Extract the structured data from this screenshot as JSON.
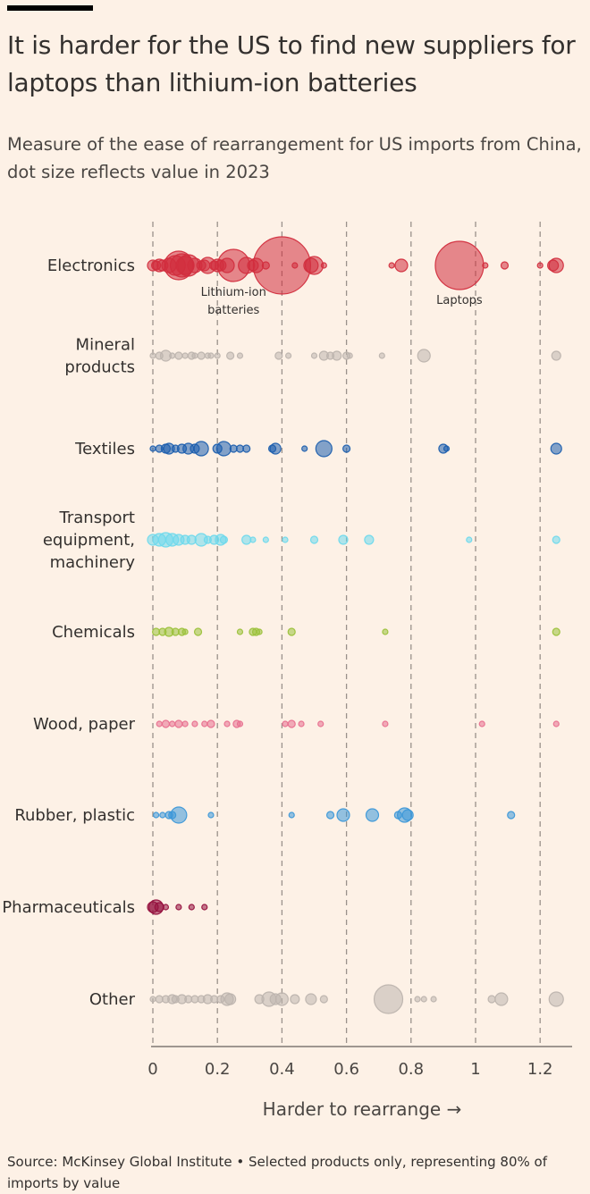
{
  "title": "It is harder for the US to find new suppliers for laptops than lithium-ion batteries",
  "subtitle": "Measure of the ease of rearrangement for US imports from China, dot size reflects value in 2023",
  "source": "Source: McKinsey Global Institute • Selected products only, representing 80% of imports by value",
  "chart_data": {
    "type": "scatter",
    "xlabel": "Harder to rearrange →",
    "xlim": [
      0,
      1.3
    ],
    "xticks": [
      0,
      0.2,
      0.4,
      0.6,
      0.8,
      1,
      1.2
    ],
    "xtick_labels": [
      "0",
      "0.2",
      "0.4",
      "0.6",
      "0.8",
      "1",
      "1.2"
    ],
    "grid": true,
    "series": [
      {
        "name": "Electronics",
        "color": "#d22e3e",
        "points": [
          {
            "x": 0.0,
            "s": 6
          },
          {
            "x": 0.01,
            "s": 5
          },
          {
            "x": 0.02,
            "s": 7
          },
          {
            "x": 0.03,
            "s": 6
          },
          {
            "x": 0.05,
            "s": 8
          },
          {
            "x": 0.07,
            "s": 11
          },
          {
            "x": 0.08,
            "s": 16
          },
          {
            "x": 0.09,
            "s": 13
          },
          {
            "x": 0.1,
            "s": 10
          },
          {
            "x": 0.11,
            "s": 12
          },
          {
            "x": 0.13,
            "s": 8
          },
          {
            "x": 0.15,
            "s": 5
          },
          {
            "x": 0.16,
            "s": 6
          },
          {
            "x": 0.17,
            "s": 9
          },
          {
            "x": 0.19,
            "s": 5
          },
          {
            "x": 0.2,
            "s": 7
          },
          {
            "x": 0.21,
            "s": 6
          },
          {
            "x": 0.23,
            "s": 8
          },
          {
            "x": 0.25,
            "s": 18,
            "label": "Lithium-ion batteries"
          },
          {
            "x": 0.29,
            "s": 9
          },
          {
            "x": 0.31,
            "s": 6
          },
          {
            "x": 0.32,
            "s": 8
          },
          {
            "x": 0.35,
            "s": 4
          },
          {
            "x": 0.4,
            "s": 32
          },
          {
            "x": 0.44,
            "s": 3
          },
          {
            "x": 0.49,
            "s": 8
          },
          {
            "x": 0.5,
            "s": 10
          },
          {
            "x": 0.53,
            "s": 3
          },
          {
            "x": 0.74,
            "s": 3
          },
          {
            "x": 0.77,
            "s": 7
          },
          {
            "x": 0.95,
            "s": 27,
            "label": "Laptops"
          },
          {
            "x": 1.03,
            "s": 3
          },
          {
            "x": 1.09,
            "s": 4
          },
          {
            "x": 1.2,
            "s": 3
          },
          {
            "x": 1.24,
            "s": 6
          },
          {
            "x": 1.25,
            "s": 8
          }
        ]
      },
      {
        "name": "Mineral products",
        "color": "#bdb4ae",
        "points": [
          {
            "x": 0.0,
            "s": 3
          },
          {
            "x": 0.02,
            "s": 4
          },
          {
            "x": 0.04,
            "s": 6
          },
          {
            "x": 0.06,
            "s": 3
          },
          {
            "x": 0.08,
            "s": 4
          },
          {
            "x": 0.1,
            "s": 3
          },
          {
            "x": 0.12,
            "s": 4
          },
          {
            "x": 0.13,
            "s": 3
          },
          {
            "x": 0.15,
            "s": 4
          },
          {
            "x": 0.17,
            "s": 3
          },
          {
            "x": 0.18,
            "s": 3
          },
          {
            "x": 0.2,
            "s": 3
          },
          {
            "x": 0.24,
            "s": 4
          },
          {
            "x": 0.27,
            "s": 3
          },
          {
            "x": 0.39,
            "s": 4
          },
          {
            "x": 0.42,
            "s": 3
          },
          {
            "x": 0.5,
            "s": 3
          },
          {
            "x": 0.53,
            "s": 5
          },
          {
            "x": 0.55,
            "s": 4
          },
          {
            "x": 0.57,
            "s": 5
          },
          {
            "x": 0.6,
            "s": 4
          },
          {
            "x": 0.61,
            "s": 3
          },
          {
            "x": 0.71,
            "s": 3
          },
          {
            "x": 0.84,
            "s": 7
          },
          {
            "x": 1.25,
            "s": 5
          }
        ]
      },
      {
        "name": "Textiles",
        "color": "#1e5fae",
        "points": [
          {
            "x": 0.0,
            "s": 3
          },
          {
            "x": 0.02,
            "s": 4
          },
          {
            "x": 0.04,
            "s": 5
          },
          {
            "x": 0.05,
            "s": 6
          },
          {
            "x": 0.07,
            "s": 4
          },
          {
            "x": 0.09,
            "s": 5
          },
          {
            "x": 0.11,
            "s": 6
          },
          {
            "x": 0.13,
            "s": 5
          },
          {
            "x": 0.15,
            "s": 8
          },
          {
            "x": 0.2,
            "s": 5
          },
          {
            "x": 0.22,
            "s": 8
          },
          {
            "x": 0.25,
            "s": 4
          },
          {
            "x": 0.27,
            "s": 4
          },
          {
            "x": 0.29,
            "s": 4
          },
          {
            "x": 0.37,
            "s": 4
          },
          {
            "x": 0.38,
            "s": 6
          },
          {
            "x": 0.47,
            "s": 3
          },
          {
            "x": 0.53,
            "s": 9
          },
          {
            "x": 0.6,
            "s": 4
          },
          {
            "x": 0.9,
            "s": 5
          },
          {
            "x": 0.91,
            "s": 3
          },
          {
            "x": 1.25,
            "s": 6
          }
        ]
      },
      {
        "name": "Transport equipment, machinery",
        "color": "#6fd9ec",
        "points": [
          {
            "x": 0.0,
            "s": 6
          },
          {
            "x": 0.02,
            "s": 7
          },
          {
            "x": 0.04,
            "s": 8
          },
          {
            "x": 0.06,
            "s": 7
          },
          {
            "x": 0.08,
            "s": 6
          },
          {
            "x": 0.1,
            "s": 5
          },
          {
            "x": 0.12,
            "s": 5
          },
          {
            "x": 0.15,
            "s": 7
          },
          {
            "x": 0.17,
            "s": 4
          },
          {
            "x": 0.19,
            "s": 5
          },
          {
            "x": 0.21,
            "s": 6
          },
          {
            "x": 0.22,
            "s": 4
          },
          {
            "x": 0.29,
            "s": 5
          },
          {
            "x": 0.31,
            "s": 3
          },
          {
            "x": 0.35,
            "s": 3
          },
          {
            "x": 0.41,
            "s": 3
          },
          {
            "x": 0.5,
            "s": 4
          },
          {
            "x": 0.59,
            "s": 5
          },
          {
            "x": 0.67,
            "s": 5
          },
          {
            "x": 0.98,
            "s": 3
          },
          {
            "x": 1.25,
            "s": 4
          }
        ]
      },
      {
        "name": "Chemicals",
        "color": "#9bc13a",
        "points": [
          {
            "x": 0.01,
            "s": 4
          },
          {
            "x": 0.03,
            "s": 4
          },
          {
            "x": 0.05,
            "s": 5
          },
          {
            "x": 0.07,
            "s": 4
          },
          {
            "x": 0.09,
            "s": 4
          },
          {
            "x": 0.1,
            "s": 3
          },
          {
            "x": 0.14,
            "s": 4
          },
          {
            "x": 0.27,
            "s": 3
          },
          {
            "x": 0.31,
            "s": 4
          },
          {
            "x": 0.32,
            "s": 4
          },
          {
            "x": 0.33,
            "s": 3
          },
          {
            "x": 0.43,
            "s": 4
          },
          {
            "x": 0.72,
            "s": 3
          },
          {
            "x": 1.25,
            "s": 4
          }
        ]
      },
      {
        "name": "Wood, paper",
        "color": "#e8708f",
        "points": [
          {
            "x": 0.02,
            "s": 3
          },
          {
            "x": 0.04,
            "s": 4
          },
          {
            "x": 0.06,
            "s": 3
          },
          {
            "x": 0.08,
            "s": 4
          },
          {
            "x": 0.1,
            "s": 3
          },
          {
            "x": 0.13,
            "s": 3
          },
          {
            "x": 0.16,
            "s": 3
          },
          {
            "x": 0.18,
            "s": 4
          },
          {
            "x": 0.23,
            "s": 3
          },
          {
            "x": 0.26,
            "s": 4
          },
          {
            "x": 0.27,
            "s": 3
          },
          {
            "x": 0.41,
            "s": 3
          },
          {
            "x": 0.43,
            "s": 4
          },
          {
            "x": 0.46,
            "s": 3
          },
          {
            "x": 0.52,
            "s": 3
          },
          {
            "x": 0.72,
            "s": 3
          },
          {
            "x": 1.02,
            "s": 3
          },
          {
            "x": 1.25,
            "s": 3
          }
        ]
      },
      {
        "name": "Rubber, plastic",
        "color": "#3d98d8",
        "points": [
          {
            "x": 0.01,
            "s": 3
          },
          {
            "x": 0.03,
            "s": 3
          },
          {
            "x": 0.05,
            "s": 4
          },
          {
            "x": 0.06,
            "s": 4
          },
          {
            "x": 0.08,
            "s": 9
          },
          {
            "x": 0.18,
            "s": 3
          },
          {
            "x": 0.43,
            "s": 3
          },
          {
            "x": 0.55,
            "s": 4
          },
          {
            "x": 0.59,
            "s": 7
          },
          {
            "x": 0.68,
            "s": 7
          },
          {
            "x": 0.76,
            "s": 4
          },
          {
            "x": 0.78,
            "s": 8
          },
          {
            "x": 0.79,
            "s": 6
          },
          {
            "x": 1.11,
            "s": 4
          }
        ]
      },
      {
        "name": "Pharmaceuticals",
        "color": "#96123f",
        "points": [
          {
            "x": 0.0,
            "s": 6
          },
          {
            "x": 0.01,
            "s": 8
          },
          {
            "x": 0.02,
            "s": 5
          },
          {
            "x": 0.04,
            "s": 3
          },
          {
            "x": 0.08,
            "s": 3
          },
          {
            "x": 0.12,
            "s": 3
          },
          {
            "x": 0.16,
            "s": 3
          }
        ]
      },
      {
        "name": "Other",
        "color": "#bdb4ae",
        "points": [
          {
            "x": 0.0,
            "s": 3
          },
          {
            "x": 0.02,
            "s": 4
          },
          {
            "x": 0.04,
            "s": 4
          },
          {
            "x": 0.06,
            "s": 5
          },
          {
            "x": 0.07,
            "s": 4
          },
          {
            "x": 0.09,
            "s": 5
          },
          {
            "x": 0.11,
            "s": 4
          },
          {
            "x": 0.13,
            "s": 4
          },
          {
            "x": 0.15,
            "s": 4
          },
          {
            "x": 0.17,
            "s": 5
          },
          {
            "x": 0.19,
            "s": 4
          },
          {
            "x": 0.21,
            "s": 4
          },
          {
            "x": 0.23,
            "s": 7
          },
          {
            "x": 0.24,
            "s": 6
          },
          {
            "x": 0.33,
            "s": 5
          },
          {
            "x": 0.36,
            "s": 8
          },
          {
            "x": 0.38,
            "s": 6
          },
          {
            "x": 0.4,
            "s": 7
          },
          {
            "x": 0.44,
            "s": 5
          },
          {
            "x": 0.49,
            "s": 6
          },
          {
            "x": 0.53,
            "s": 4
          },
          {
            "x": 0.73,
            "s": 16
          },
          {
            "x": 0.82,
            "s": 3
          },
          {
            "x": 0.84,
            "s": 3
          },
          {
            "x": 0.87,
            "s": 3
          },
          {
            "x": 1.05,
            "s": 4
          },
          {
            "x": 1.08,
            "s": 7
          },
          {
            "x": 1.25,
            "s": 8
          }
        ]
      }
    ]
  }
}
